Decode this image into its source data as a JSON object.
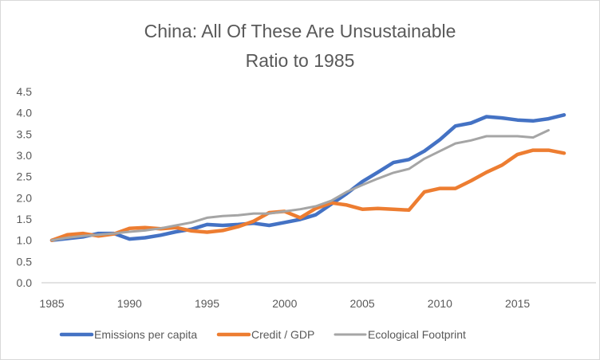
{
  "chart_data": {
    "type": "line",
    "title": "China: All Of These Are Unsustainable",
    "subtitle": "Ratio to 1985",
    "xlabel": "",
    "ylabel": "",
    "ylim": [
      0,
      4.5
    ],
    "xlim": [
      1985,
      2018
    ],
    "y_ticks": [
      "0.0",
      "0.5",
      "1.0",
      "1.5",
      "2.0",
      "2.5",
      "3.0",
      "3.5",
      "4.0",
      "4.5"
    ],
    "x_ticks": [
      "1985",
      "1990",
      "1995",
      "2000",
      "2005",
      "2010",
      "2015"
    ],
    "grid": false,
    "legend_position": "bottom",
    "x": [
      1985,
      1986,
      1987,
      1988,
      1989,
      1990,
      1991,
      1992,
      1993,
      1994,
      1995,
      1996,
      1997,
      1998,
      1999,
      2000,
      2001,
      2002,
      2003,
      2004,
      2005,
      2006,
      2007,
      2008,
      2009,
      2010,
      2011,
      2012,
      2013,
      2014,
      2015,
      2016,
      2017,
      2018
    ],
    "series": [
      {
        "name": "Emissions per capita",
        "color": "#4472c4",
        "values": [
          1.0,
          1.04,
          1.08,
          1.16,
          1.16,
          1.03,
          1.06,
          1.12,
          1.2,
          1.26,
          1.37,
          1.35,
          1.37,
          1.4,
          1.35,
          1.42,
          1.49,
          1.6,
          1.85,
          2.1,
          2.38,
          2.6,
          2.83,
          2.9,
          3.1,
          3.37,
          3.69,
          3.76,
          3.91,
          3.88,
          3.83,
          3.81,
          3.86,
          3.95
        ]
      },
      {
        "name": "Credit / GDP",
        "color": "#ed7d31",
        "values": [
          1.0,
          1.13,
          1.16,
          1.1,
          1.15,
          1.28,
          1.3,
          1.27,
          1.3,
          1.22,
          1.19,
          1.23,
          1.32,
          1.45,
          1.65,
          1.68,
          1.53,
          1.75,
          1.88,
          1.83,
          1.73,
          1.75,
          1.73,
          1.71,
          2.14,
          2.22,
          2.22,
          2.4,
          2.6,
          2.77,
          3.02,
          3.12,
          3.12,
          3.05
        ]
      },
      {
        "name": "Ecological Footprint",
        "color": "#a5a5a5",
        "values": [
          1.0,
          1.06,
          1.1,
          1.13,
          1.16,
          1.2,
          1.23,
          1.28,
          1.35,
          1.42,
          1.53,
          1.57,
          1.59,
          1.63,
          1.63,
          1.68,
          1.73,
          1.8,
          1.93,
          2.14,
          2.3,
          2.45,
          2.59,
          2.68,
          2.92,
          3.1,
          3.28,
          3.35,
          3.45,
          3.45,
          3.45,
          3.42,
          3.59,
          null
        ]
      }
    ]
  }
}
